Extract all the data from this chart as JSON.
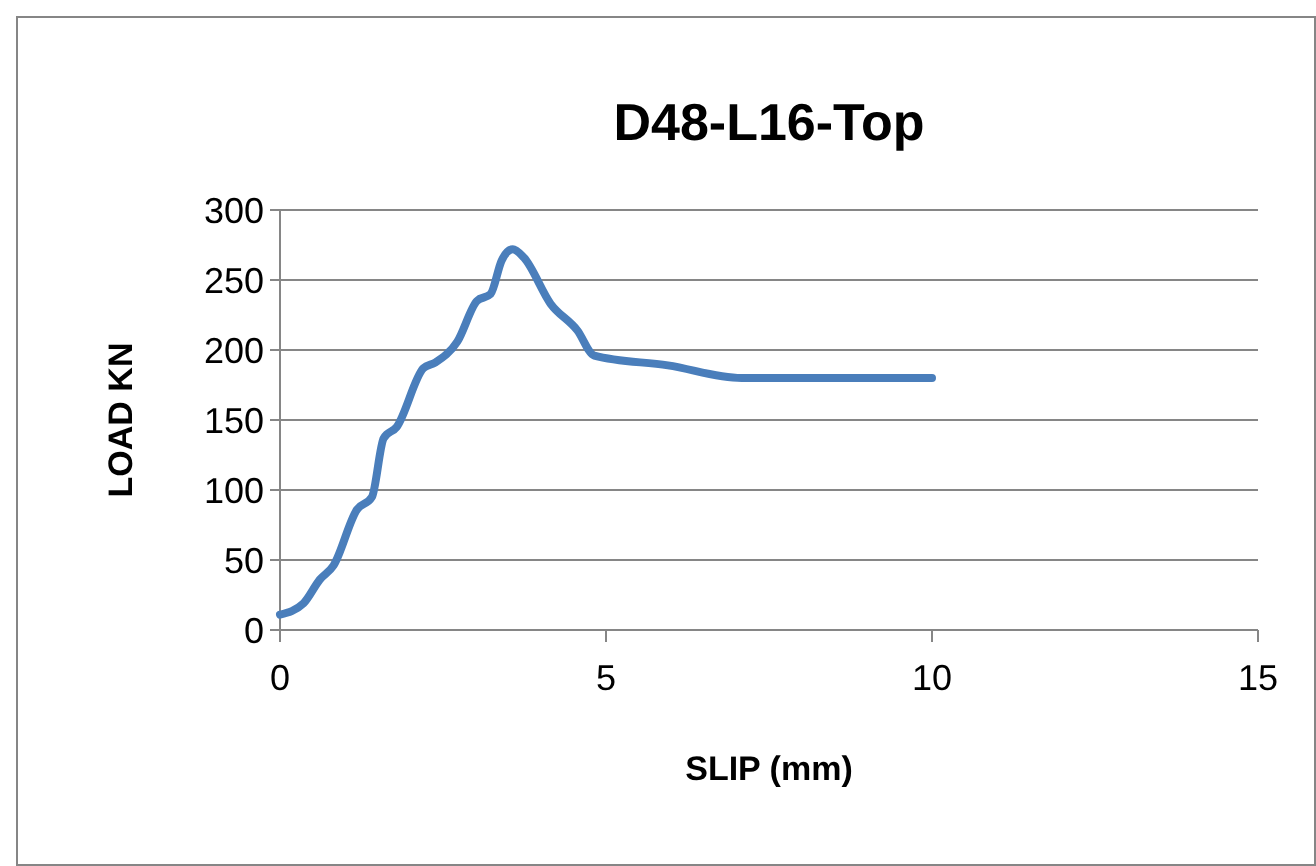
{
  "chart_data": {
    "type": "line",
    "title": "D48-L16-Top",
    "xlabel": "SLIP (mm)",
    "ylabel": "LOAD KN",
    "x": [
      0,
      0.36,
      0.61,
      0.82,
      1.18,
      1.41,
      1.59,
      1.79,
      2.2,
      2.38,
      2.72,
      3.02,
      3.23,
      3.4,
      3.57,
      3.74,
      4.15,
      4.56,
      4.82,
      5.95,
      7.08,
      8.2,
      10
    ],
    "series": [
      {
        "color": "#4a7ebb",
        "values": [
          11,
          19,
          36,
          46,
          86,
          95,
          137,
          145,
          187,
          191,
          206,
          235,
          240,
          264,
          272,
          266,
          233,
          214,
          196,
          189,
          180,
          180,
          180
        ]
      }
    ],
    "xlim": [
      0,
      15
    ],
    "xticks": [
      0,
      5,
      10,
      15
    ],
    "ylim": [
      0,
      300
    ],
    "yticks": [
      0,
      50,
      100,
      150,
      200,
      250,
      300
    ],
    "grid": "y",
    "marker": "none",
    "line_style": "solid"
  }
}
